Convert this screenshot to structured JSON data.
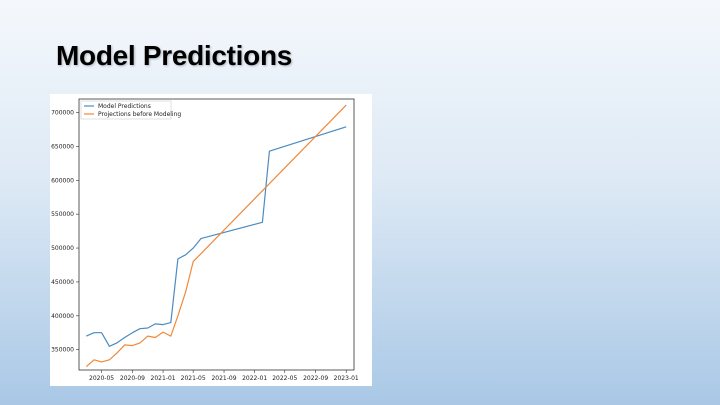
{
  "slide": {
    "title": "Model Predictions"
  },
  "colors": {
    "series_1": "#4c8bc0",
    "series_2": "#f0883a",
    "axis": "#333333"
  },
  "chart_data": {
    "type": "line",
    "title": "",
    "xlabel": "",
    "ylabel": "",
    "ylim": [
      320000,
      720000
    ],
    "x_ticks": [
      "2020-05",
      "2020-09",
      "2021-01",
      "2021-05",
      "2021-09",
      "2022-01",
      "2022-05",
      "2022-09",
      "2023-01"
    ],
    "y_ticks": [
      350000,
      400000,
      450000,
      500000,
      550000,
      600000,
      650000,
      700000
    ],
    "x_range": [
      "2020-02-01",
      "2023-02-01"
    ],
    "legend_position": "top-left",
    "grid": false,
    "series": [
      {
        "name": "Model Predictions",
        "points": [
          [
            "2020-03",
            370000
          ],
          [
            "2020-04",
            375000
          ],
          [
            "2020-05",
            375000
          ],
          [
            "2020-06",
            355000
          ],
          [
            "2020-07",
            360000
          ],
          [
            "2020-08",
            368000
          ],
          [
            "2020-09",
            375000
          ],
          [
            "2020-10",
            381000
          ],
          [
            "2020-11",
            382000
          ],
          [
            "2020-12",
            388000
          ],
          [
            "2021-01",
            387000
          ],
          [
            "2021-02",
            390000
          ],
          [
            "2021-03",
            484000
          ],
          [
            "2021-04",
            490000
          ],
          [
            "2021-05",
            500000
          ],
          [
            "2021-06",
            514000
          ],
          [
            "2022-02",
            538000
          ],
          [
            "2022-03",
            643000
          ],
          [
            "2023-01",
            679000
          ]
        ]
      },
      {
        "name": "Projections before Modeling",
        "points": [
          [
            "2020-03",
            325000
          ],
          [
            "2020-04",
            335000
          ],
          [
            "2020-05",
            332000
          ],
          [
            "2020-06",
            335000
          ],
          [
            "2020-07",
            345000
          ],
          [
            "2020-08",
            357000
          ],
          [
            "2020-09",
            356000
          ],
          [
            "2020-10",
            360000
          ],
          [
            "2020-11",
            370000
          ],
          [
            "2020-12",
            368000
          ],
          [
            "2021-01",
            376000
          ],
          [
            "2021-02",
            370000
          ],
          [
            "2021-03",
            400000
          ],
          [
            "2021-04",
            435000
          ],
          [
            "2021-05",
            480000
          ],
          [
            "2023-01",
            711000
          ]
        ]
      }
    ]
  }
}
